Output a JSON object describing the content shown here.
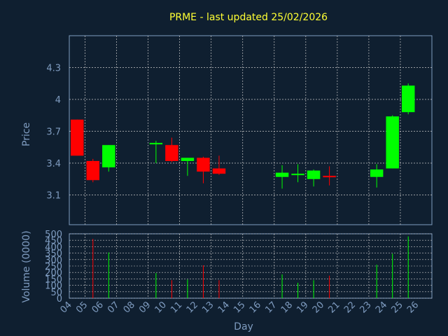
{
  "chart_data": [
    {
      "type": "candlestick",
      "title": "PRME - last updated 25/02/2026",
      "ylabel": "Price",
      "ylim": [
        2.82,
        4.6
      ],
      "yticks": [
        "3.1",
        "3.4",
        "3.7",
        "4",
        "4.3"
      ],
      "ytick_values": [
        3.1,
        3.4,
        3.7,
        4.0,
        4.3
      ],
      "grid": true,
      "colors": {
        "up": "#00ff00",
        "down": "#ff0000",
        "background": "#0f1f30",
        "grid": "#c8c8c8",
        "axis_text": "#7f9cc0",
        "title": "#ffff33"
      },
      "candles": [
        {
          "day": "04",
          "open": 3.81,
          "high": 3.81,
          "low": 3.47,
          "close": 3.47
        },
        {
          "day": "05",
          "open": 3.42,
          "high": 3.44,
          "low": 3.22,
          "close": 3.24
        },
        {
          "day": "06",
          "open": 3.36,
          "high": 3.57,
          "low": 3.32,
          "close": 3.57
        },
        {
          "day": "09",
          "open": 3.58,
          "high": 3.61,
          "low": 3.4,
          "close": 3.59
        },
        {
          "day": "10",
          "open": 3.57,
          "high": 3.64,
          "low": 3.41,
          "close": 3.42
        },
        {
          "day": "11",
          "open": 3.42,
          "high": 3.45,
          "low": 3.28,
          "close": 3.45
        },
        {
          "day": "12",
          "open": 3.45,
          "high": 3.46,
          "low": 3.21,
          "close": 3.32
        },
        {
          "day": "13",
          "open": 3.35,
          "high": 3.47,
          "low": 3.29,
          "close": 3.3
        },
        {
          "day": "17",
          "open": 3.27,
          "high": 3.38,
          "low": 3.16,
          "close": 3.31
        },
        {
          "day": "18",
          "open": 3.29,
          "high": 3.39,
          "low": 3.22,
          "close": 3.3
        },
        {
          "day": "19",
          "open": 3.25,
          "high": 3.34,
          "low": 3.18,
          "close": 3.33
        },
        {
          "day": "20",
          "open": 3.28,
          "high": 3.37,
          "low": 3.19,
          "close": 3.27
        },
        {
          "day": "23",
          "open": 3.27,
          "high": 3.39,
          "low": 3.17,
          "close": 3.34
        },
        {
          "day": "24",
          "open": 3.35,
          "high": 3.85,
          "low": 3.35,
          "close": 3.84
        },
        {
          "day": "25",
          "open": 3.88,
          "high": 4.15,
          "low": 3.86,
          "close": 4.13
        }
      ]
    },
    {
      "type": "bar",
      "ylabel": "Volume (0000)",
      "xlabel": "Day",
      "ylim": [
        0,
        500
      ],
      "yticks": [
        "0",
        "50",
        "100",
        "150",
        "200",
        "250",
        "300",
        "350",
        "400",
        "450",
        "500"
      ],
      "ytick_values": [
        0,
        50,
        100,
        150,
        200,
        250,
        300,
        350,
        400,
        450,
        500
      ],
      "categories": [
        "04",
        "05",
        "06",
        "07",
        "08",
        "09",
        "10",
        "11",
        "12",
        "13",
        "14",
        "15",
        "16",
        "17",
        "18",
        "19",
        "20",
        "21",
        "22",
        "23",
        "24",
        "25",
        "26"
      ],
      "volumes": [
        {
          "day": "05",
          "value": 460,
          "direction": "down"
        },
        {
          "day": "06",
          "value": 355,
          "direction": "up"
        },
        {
          "day": "09",
          "value": 195,
          "direction": "up"
        },
        {
          "day": "10",
          "value": 140,
          "direction": "down"
        },
        {
          "day": "11",
          "value": 145,
          "direction": "up"
        },
        {
          "day": "12",
          "value": 255,
          "direction": "down"
        },
        {
          "day": "13",
          "value": 140,
          "direction": "down"
        },
        {
          "day": "17",
          "value": 185,
          "direction": "up"
        },
        {
          "day": "18",
          "value": 120,
          "direction": "up"
        },
        {
          "day": "19",
          "value": 140,
          "direction": "up"
        },
        {
          "day": "20",
          "value": 175,
          "direction": "down"
        },
        {
          "day": "23",
          "value": 260,
          "direction": "up"
        },
        {
          "day": "24",
          "value": 345,
          "direction": "up"
        },
        {
          "day": "25",
          "value": 480,
          "direction": "up"
        }
      ]
    }
  ]
}
